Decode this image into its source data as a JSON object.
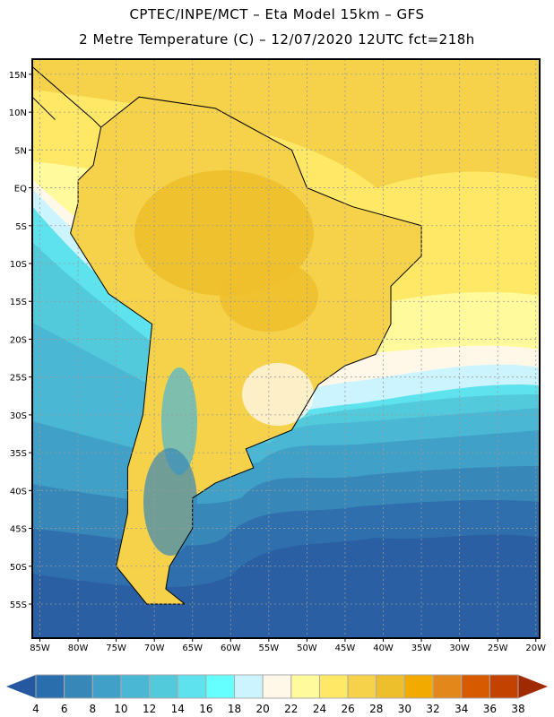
{
  "header": {
    "title": "CPTEC/INPE/MCT –  Eta Model 15km – GFS",
    "subtitle": "2 Metre Temperature (C) – 12/07/2020 12UTC fct=218h"
  },
  "map": {
    "lon_labels": [
      "85W",
      "80W",
      "75W",
      "70W",
      "65W",
      "60W",
      "55W",
      "50W",
      "45W",
      "40W",
      "35W",
      "30W",
      "25W",
      "20W"
    ],
    "lat_labels": [
      "15N",
      "10N",
      "5N",
      "EQ",
      "5S",
      "10S",
      "15S",
      "20S",
      "25S",
      "30S",
      "35S",
      "40S",
      "45S",
      "50S",
      "55S"
    ],
    "lon_values": [
      -85,
      -80,
      -75,
      -70,
      -65,
      -60,
      -55,
      -50,
      -45,
      -40,
      -35,
      -30,
      -25,
      -20
    ],
    "lat_values": [
      15,
      10,
      5,
      0,
      -5,
      -10,
      -15,
      -20,
      -25,
      -30,
      -35,
      -40,
      -45,
      -50,
      -55
    ],
    "lon_range": [
      -86,
      -19.5
    ],
    "lat_range": [
      17,
      -59.5
    ]
  },
  "colorbar": {
    "labels": [
      "4",
      "6",
      "8",
      "10",
      "12",
      "14",
      "16",
      "18",
      "20",
      "22",
      "24",
      "26",
      "28",
      "30",
      "32",
      "34",
      "36",
      "38"
    ],
    "colors": [
      "#2b6ead",
      "#3788b8",
      "#40a0c8",
      "#4ab7d5",
      "#52cadb",
      "#5ee3ee",
      "#66ffff",
      "#ccf4ff",
      "#fff8e8",
      "#fffa9c",
      "#ffe866",
      "#f5d24a",
      "#eebf2c",
      "#f2aa00",
      "#e4871a",
      "#d75a00",
      "#c34200"
    ],
    "under_color": "#2558a0",
    "over_color": "#a02a00"
  }
}
